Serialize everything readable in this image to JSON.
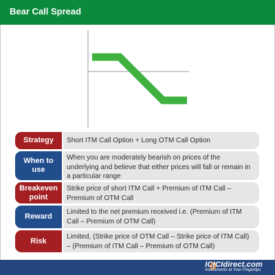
{
  "title": "Bear Call Spread",
  "colors": {
    "header_green": "#0c8a3c",
    "payoff_green": "#3fb13f",
    "label_red": "#a41f22",
    "label_blue": "#214d8c",
    "footer_blue": "#24467e",
    "logo_orange": "#f58220"
  },
  "rows": [
    {
      "label": "Strategy",
      "text": "Short ITM Call Option + Long OTM Call Option",
      "color": "red"
    },
    {
      "label": "When to use",
      "text": "When you are moderately bearish on prices of the underlying and believe that either prices will fall or remain in a particular range",
      "color": "blue"
    },
    {
      "label": "Breakeven point",
      "text": "Strike price of short ITM Call + Premium of ITM Call – Premium of OTM Call",
      "color": "red"
    },
    {
      "label": "Reward",
      "text": "Limited to the net premium received i.e. (Premium of ITM Call – Premium of OTM Call)",
      "color": "blue"
    },
    {
      "label": "Risk",
      "text": "Limited, (Strike price of OTM Call – Strike price of ITM Call) – (Premium of ITM Call – Premium of OTM Call)",
      "color": "red"
    }
  ],
  "logo": {
    "brand_prefix": "ICICI",
    "brand_suffix": "direct.com",
    "tagline": "Investments at Your Fingertips",
    "icon": "icici-logo-icon"
  }
}
